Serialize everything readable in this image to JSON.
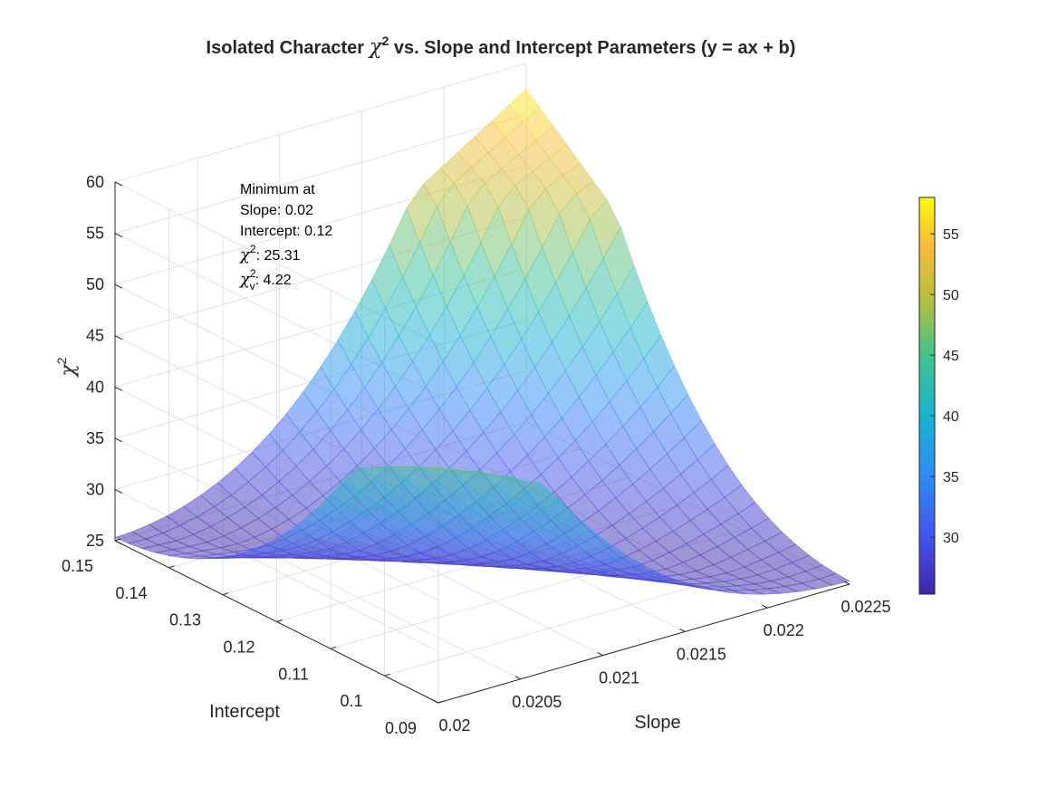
{
  "chart_data": {
    "type": "surface",
    "title": "Isolated Character χ² vs. Slope and Intercept Parameters (y = ax + b)",
    "title_parts": {
      "prefix": "Isolated Character ",
      "chi": "χ",
      "sup": "2",
      "suffix": " vs. Slope and Intercept Parameters (y = ax + b)"
    },
    "xlabel": "Slope",
    "ylabel": "Intercept",
    "zlabel": "χ²",
    "zlabel_parts": {
      "chi": "χ",
      "sup": "2"
    },
    "xlim": [
      0.02,
      0.0225
    ],
    "ylim": [
      0.09,
      0.15
    ],
    "zlim": [
      25,
      60
    ],
    "xticks": [
      "0.02",
      "0.0205",
      "0.021",
      "0.0215",
      "0.022",
      "0.0225"
    ],
    "yticks": [
      "0.09",
      "0.1",
      "0.11",
      "0.12",
      "0.13",
      "0.14",
      "0.15"
    ],
    "zticks": [
      "25",
      "30",
      "35",
      "40",
      "45",
      "50",
      "55",
      "60"
    ],
    "grid": true,
    "colormap": "parula",
    "colorbar": {
      "range": [
        25.31,
        58
      ],
      "ticks": [
        "30",
        "35",
        "40",
        "45",
        "50",
        "55"
      ],
      "position": "right"
    },
    "surface_corners": [
      {
        "slope": 0.02,
        "intercept": 0.09,
        "chi2": 48
      },
      {
        "slope": 0.02,
        "intercept": 0.15,
        "chi2": 32
      },
      {
        "slope": 0.0225,
        "intercept": 0.09,
        "chi2": 30
      },
      {
        "slope": 0.0225,
        "intercept": 0.15,
        "chi2": 57.5
      }
    ],
    "minimum": {
      "slope": 0.02,
      "intercept": 0.12,
      "chi2": 25.31,
      "chi2_reduced": 4.22
    },
    "annotation": {
      "line1": "Minimum at",
      "line2": "Slope: 0.02",
      "line3": "Intercept: 0.12",
      "chi": "χ",
      "sup": "2",
      "sub": "v",
      "line4_value": ": 25.31",
      "line5_value": ": 4.22"
    }
  }
}
